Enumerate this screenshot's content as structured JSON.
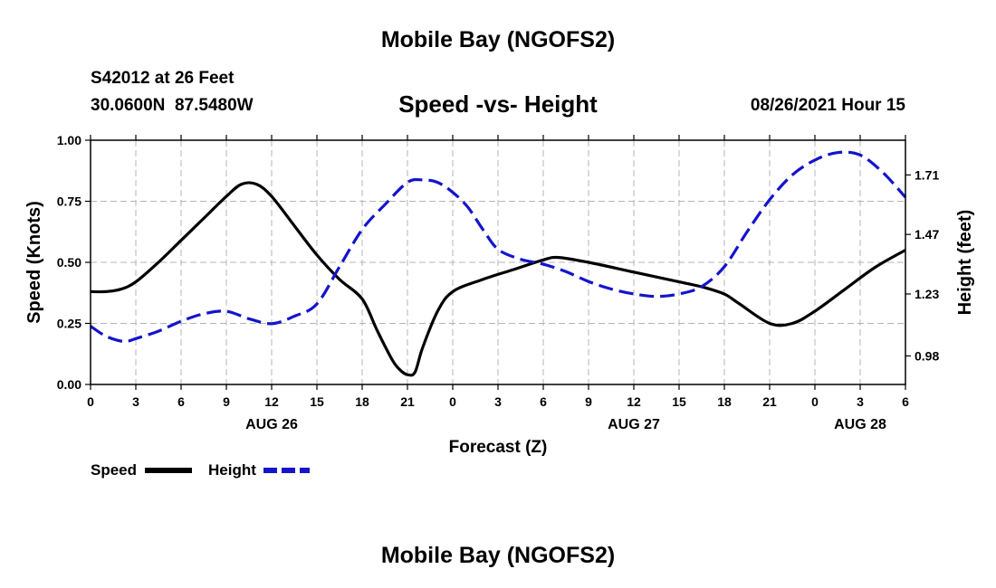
{
  "header": {
    "title": "Mobile Bay (NGOFS2)",
    "station": "S42012 at 26 Feet",
    "coords": "30.0600N  87.5480W",
    "chart_title": "Speed -vs- Height",
    "date": "08/26/2021 Hour 15"
  },
  "footer": {
    "title": "Mobile Bay (NGOFS2)"
  },
  "legend": {
    "speed_label": "Speed",
    "height_label": "Height"
  },
  "colors": {
    "speed": "#000000",
    "height": "#1414cc",
    "grid": "#b4b4b4"
  },
  "chart_data": {
    "type": "line",
    "title": "Speed -vs- Height",
    "xlabel": "Forecast (Z)",
    "ylabel": "Speed (Knots)",
    "y2label": "Height (feet)",
    "xlim": [
      0,
      54
    ],
    "ylim": [
      0,
      1
    ],
    "y2lim": [
      0.865,
      1.85
    ],
    "x_ticks": [
      0,
      3,
      6,
      9,
      12,
      15,
      18,
      21,
      24,
      27,
      30,
      33,
      36,
      39,
      42,
      45,
      48,
      51,
      54
    ],
    "x_tick_labels": [
      "0",
      "3",
      "6",
      "9",
      "12",
      "15",
      "18",
      "21",
      "0",
      "3",
      "6",
      "9",
      "12",
      "15",
      "18",
      "21",
      "0",
      "3",
      "6"
    ],
    "date_labels": [
      {
        "x": 12,
        "text": "AUG 26"
      },
      {
        "x": 36,
        "text": "AUG 27"
      },
      {
        "x": 51,
        "text": "AUG 28"
      }
    ],
    "y_ticks": [
      0.0,
      0.25,
      0.5,
      0.75,
      1.0
    ],
    "y_tick_labels": [
      "0.00",
      "0.25",
      "0.50",
      "0.75",
      "1.00"
    ],
    "y2_ticks": [
      0.98,
      1.23,
      1.47,
      1.71
    ],
    "y2_tick_labels": [
      "0.98",
      "1.23",
      "1.47",
      "1.71"
    ],
    "grid": true,
    "legend_position": "bottom-left",
    "series": [
      {
        "name": "Speed",
        "axis": "left",
        "style": "solid",
        "x": [
          0,
          1,
          2,
          3,
          4.5,
          6,
          7.5,
          9,
          10,
          11,
          12,
          13.5,
          15,
          16.5,
          18,
          19,
          20,
          20.5,
          21,
          21.5,
          22,
          23,
          24,
          26,
          28,
          30,
          31,
          33,
          36,
          39,
          40.5,
          42,
          43,
          45,
          46.5,
          48,
          50,
          52,
          54
        ],
        "values": [
          0.38,
          0.38,
          0.39,
          0.42,
          0.5,
          0.59,
          0.68,
          0.77,
          0.82,
          0.82,
          0.77,
          0.65,
          0.53,
          0.43,
          0.35,
          0.22,
          0.1,
          0.06,
          0.04,
          0.05,
          0.15,
          0.3,
          0.38,
          0.43,
          0.47,
          0.51,
          0.52,
          0.5,
          0.46,
          0.42,
          0.4,
          0.37,
          0.33,
          0.25,
          0.25,
          0.3,
          0.39,
          0.48,
          0.55
        ]
      },
      {
        "name": "Height",
        "axis": "right",
        "style": "dashed",
        "x": [
          0,
          1,
          2,
          2.5,
          3,
          4.5,
          6,
          7.5,
          9,
          10.5,
          12,
          13.5,
          15,
          16.5,
          18,
          19.5,
          21,
          22,
          23,
          24,
          25,
          26,
          27,
          28.5,
          30,
          31.5,
          33,
          34.5,
          36,
          37.5,
          39,
          40.5,
          42,
          43.5,
          45,
          46.5,
          48,
          49.5,
          51,
          52.5,
          54
        ],
        "values": [
          1.1,
          1.06,
          1.04,
          1.04,
          1.05,
          1.08,
          1.12,
          1.15,
          1.16,
          1.13,
          1.11,
          1.14,
          1.19,
          1.34,
          1.49,
          1.59,
          1.68,
          1.69,
          1.68,
          1.64,
          1.58,
          1.49,
          1.41,
          1.37,
          1.35,
          1.32,
          1.28,
          1.25,
          1.23,
          1.22,
          1.23,
          1.26,
          1.34,
          1.48,
          1.61,
          1.71,
          1.77,
          1.8,
          1.79,
          1.72,
          1.62
        ]
      }
    ]
  }
}
